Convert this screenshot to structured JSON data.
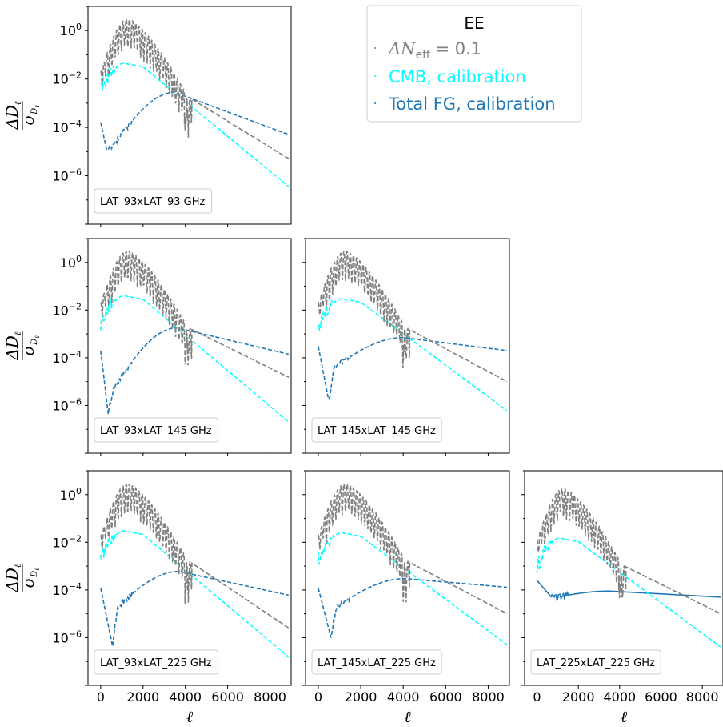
{
  "chart_data": {
    "type": "line",
    "grid": false,
    "yscale": "log",
    "xlim": [
      -600,
      9000
    ],
    "ylim": [
      1e-08,
      10
    ],
    "xlabel": "ℓ",
    "ylabel": "ΔD_ℓ / σ_{D_ℓ}",
    "x_ticks": [
      "0",
      "2000",
      "4000",
      "6000",
      "8000"
    ],
    "y_ticks": [
      "10^0",
      "10^-2",
      "10^-4",
      "10^-6"
    ],
    "legend": {
      "title": "EE",
      "location": "top-center",
      "entries": [
        {
          "name": "ΔN_eff = 0.1",
          "color": "#808080"
        },
        {
          "name": "CMB, calibration",
          "color": "#00ffff"
        },
        {
          "name": "Total FG, calibration",
          "color": "#1f77b4"
        }
      ]
    },
    "panels": [
      {
        "label": "LAT_93xLAT_93 GHz",
        "row": 0,
        "col": 0,
        "neff": {
          "peak": 3.0,
          "end": 5e-06,
          "end_x": 8900
        },
        "cmb": {
          "peak": 0.045,
          "end": 3.5e-07
        },
        "fg": {
          "start": 0.00016,
          "dip": 1e-05,
          "dip_x": 300,
          "mid": 1.5e-05,
          "max": 0.0028,
          "max_x": 3500,
          "end": 5e-05,
          "style": "dashed"
        }
      },
      {
        "label": "LAT_93xLAT_145 GHz",
        "row": 1,
        "col": 0,
        "neff": {
          "peak": 3.0,
          "end": 1.5e-05,
          "end_x": 8900
        },
        "cmb": {
          "peak": 0.04,
          "end": 2e-07
        },
        "fg": {
          "start": 0.0002,
          "dip": 5e-07,
          "dip_x": 350,
          "mid": 5e-06,
          "max": 0.0018,
          "max_x": 3600,
          "end": 0.00014,
          "style": "dashed"
        }
      },
      {
        "label": "LAT_145xLAT_145 GHz",
        "row": 1,
        "col": 1,
        "neff": {
          "peak": 3.0,
          "end": 1e-05,
          "end_x": 8900
        },
        "cmb": {
          "peak": 0.03,
          "end": 6e-07
        },
        "fg": {
          "start": 0.0003,
          "dip": 1.5e-06,
          "dip_x": 500,
          "mid": 4e-05,
          "max": 0.0007,
          "max_x": 4000,
          "end": 0.0002,
          "style": "dashed"
        }
      },
      {
        "label": "LAT_93xLAT_225 GHz",
        "row": 2,
        "col": 0,
        "neff": {
          "peak": 2.8,
          "end": 2.5e-06,
          "end_x": 8900
        },
        "cmb": {
          "peak": 0.03,
          "end": 1.5e-07
        },
        "fg": {
          "start": 0.00012,
          "dip": 5e-07,
          "dip_x": 550,
          "mid": 2e-05,
          "max": 0.0006,
          "max_x": 3700,
          "end": 6e-05,
          "style": "dashed"
        }
      },
      {
        "label": "LAT_145xLAT_225 GHz",
        "row": 2,
        "col": 1,
        "neff": {
          "peak": 2.8,
          "end": 1e-05,
          "end_x": 8900
        },
        "cmb": {
          "peak": 0.025,
          "end": 5e-07
        },
        "fg": {
          "start": 0.00012,
          "dip": 1e-06,
          "dip_x": 600,
          "mid": 2e-05,
          "max": 0.0003,
          "max_x": 4100,
          "end": 0.00013,
          "style": "dashed"
        }
      },
      {
        "label": "LAT_225xLAT_225 GHz",
        "row": 2,
        "col": 2,
        "neff": {
          "peak": 1.8,
          "end": 1e-05,
          "end_x": 8900
        },
        "cmb": {
          "peak": 0.015,
          "end": 4e-07
        },
        "fg": {
          "start": 0.00025,
          "dip": 5e-05,
          "dip_x": 700,
          "mid": 5e-05,
          "max": 9e-05,
          "max_x": 3500,
          "end": 5e-05,
          "style": "solid"
        }
      }
    ]
  }
}
